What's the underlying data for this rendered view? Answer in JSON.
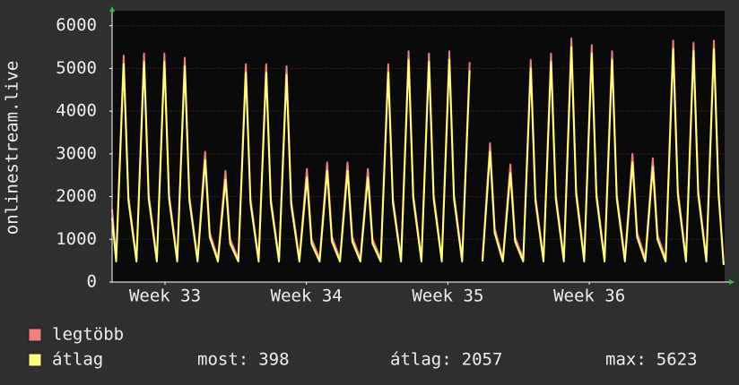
{
  "chart_data": {
    "type": "line",
    "y_label": "onlinestream.live",
    "x": [
      0,
      0.2,
      0.57,
      0.8,
      1.2,
      1.57,
      1.8,
      2.2,
      2.57,
      2.8,
      3.2,
      3.57,
      3.8,
      4.2,
      4.57,
      4.8,
      5.2,
      5.57,
      5.8,
      6.2,
      6.57,
      6.8,
      7.2,
      7.57,
      7.8,
      8.2,
      8.57,
      8.8,
      9.2,
      9.57,
      9.8,
      10.2,
      10.57,
      10.8,
      11.2,
      11.57,
      11.8,
      12.2,
      12.57,
      12.8,
      13.2,
      13.57,
      13.8,
      14.2,
      14.57,
      14.8,
      15.2,
      15.57,
      15.8,
      16.2,
      16.57,
      16.8,
      17.2,
      17.57,
      17.8,
      18.2,
      18.57,
      18.8,
      19.2,
      19.57,
      19.8,
      20.2,
      20.57,
      20.8,
      21.2,
      21.57,
      21.8,
      22.2,
      22.57,
      22.8,
      23.2,
      23.57,
      23.8,
      24.2,
      24.57,
      24.8,
      25.2,
      25.57,
      25.8,
      26.2,
      26.57,
      26.8,
      27.2,
      27.57,
      27.8,
      28.2,
      28.57,
      28.8,
      29.2,
      29.57,
      29.8,
      30.05
    ],
    "series": [
      {
        "name": "legtöbb",
        "color": "#f08080",
        "values": [
          1700,
          550,
          5300,
          2000,
          550,
          5350,
          2050,
          550,
          5350,
          2050,
          550,
          5250,
          2000,
          550,
          3050,
          1150,
          550,
          2600,
          1000,
          550,
          5100,
          1950,
          550,
          5100,
          1950,
          550,
          5050,
          1900,
          550,
          2650,
          1000,
          550,
          2800,
          1050,
          550,
          2800,
          1050,
          550,
          2650,
          1000,
          550,
          5100,
          1950,
          550,
          5400,
          2050,
          550,
          5350,
          2050,
          550,
          5400,
          2050,
          550,
          5150,
          null,
          550,
          3250,
          1250,
          550,
          2750,
          1050,
          550,
          5200,
          2000,
          550,
          5350,
          2050,
          550,
          5700,
          2150,
          550,
          5550,
          2100,
          550,
          5400,
          2050,
          550,
          3000,
          1150,
          550,
          2900,
          1100,
          550,
          5650,
          2150,
          550,
          5600,
          2150,
          550,
          5650,
          2150,
          420
        ]
      },
      {
        "name": "átlag",
        "color": "#ffff80",
        "values": [
          1500,
          480,
          5100,
          1900,
          480,
          5150,
          1950,
          480,
          5150,
          1950,
          480,
          5050,
          1900,
          480,
          2850,
          1050,
          480,
          2400,
          900,
          480,
          4900,
          1850,
          480,
          4900,
          1850,
          480,
          4850,
          1800,
          480,
          2450,
          900,
          480,
          2600,
          950,
          480,
          2600,
          950,
          480,
          2450,
          900,
          480,
          4900,
          1850,
          480,
          5200,
          1950,
          480,
          5150,
          1950,
          480,
          5200,
          1950,
          480,
          4950,
          null,
          480,
          3050,
          1150,
          480,
          2550,
          950,
          480,
          5000,
          1900,
          480,
          5150,
          1950,
          480,
          5500,
          2050,
          480,
          5350,
          2000,
          480,
          5200,
          1950,
          480,
          2800,
          1050,
          480,
          2700,
          1000,
          480,
          5450,
          2050,
          480,
          5400,
          2050,
          480,
          5450,
          2050,
          398
        ]
      }
    ],
    "xlim": [
      0,
      30.1
    ],
    "xticks": [
      {
        "value": 2.6,
        "label": "Week 33"
      },
      {
        "value": 9.55,
        "label": "Week 34"
      },
      {
        "value": 16.5,
        "label": "Week 35"
      },
      {
        "value": 23.45,
        "label": "Week 36"
      }
    ],
    "ylim": [
      0,
      6350
    ],
    "yticks": [
      0,
      1000,
      2000,
      3000,
      4000,
      5000,
      6000
    ],
    "grid": true,
    "stats": [
      {
        "label": "most:",
        "value": 398
      },
      {
        "label": "átlag:",
        "value": 2057
      },
      {
        "label": "max:",
        "value": 5623
      }
    ]
  }
}
